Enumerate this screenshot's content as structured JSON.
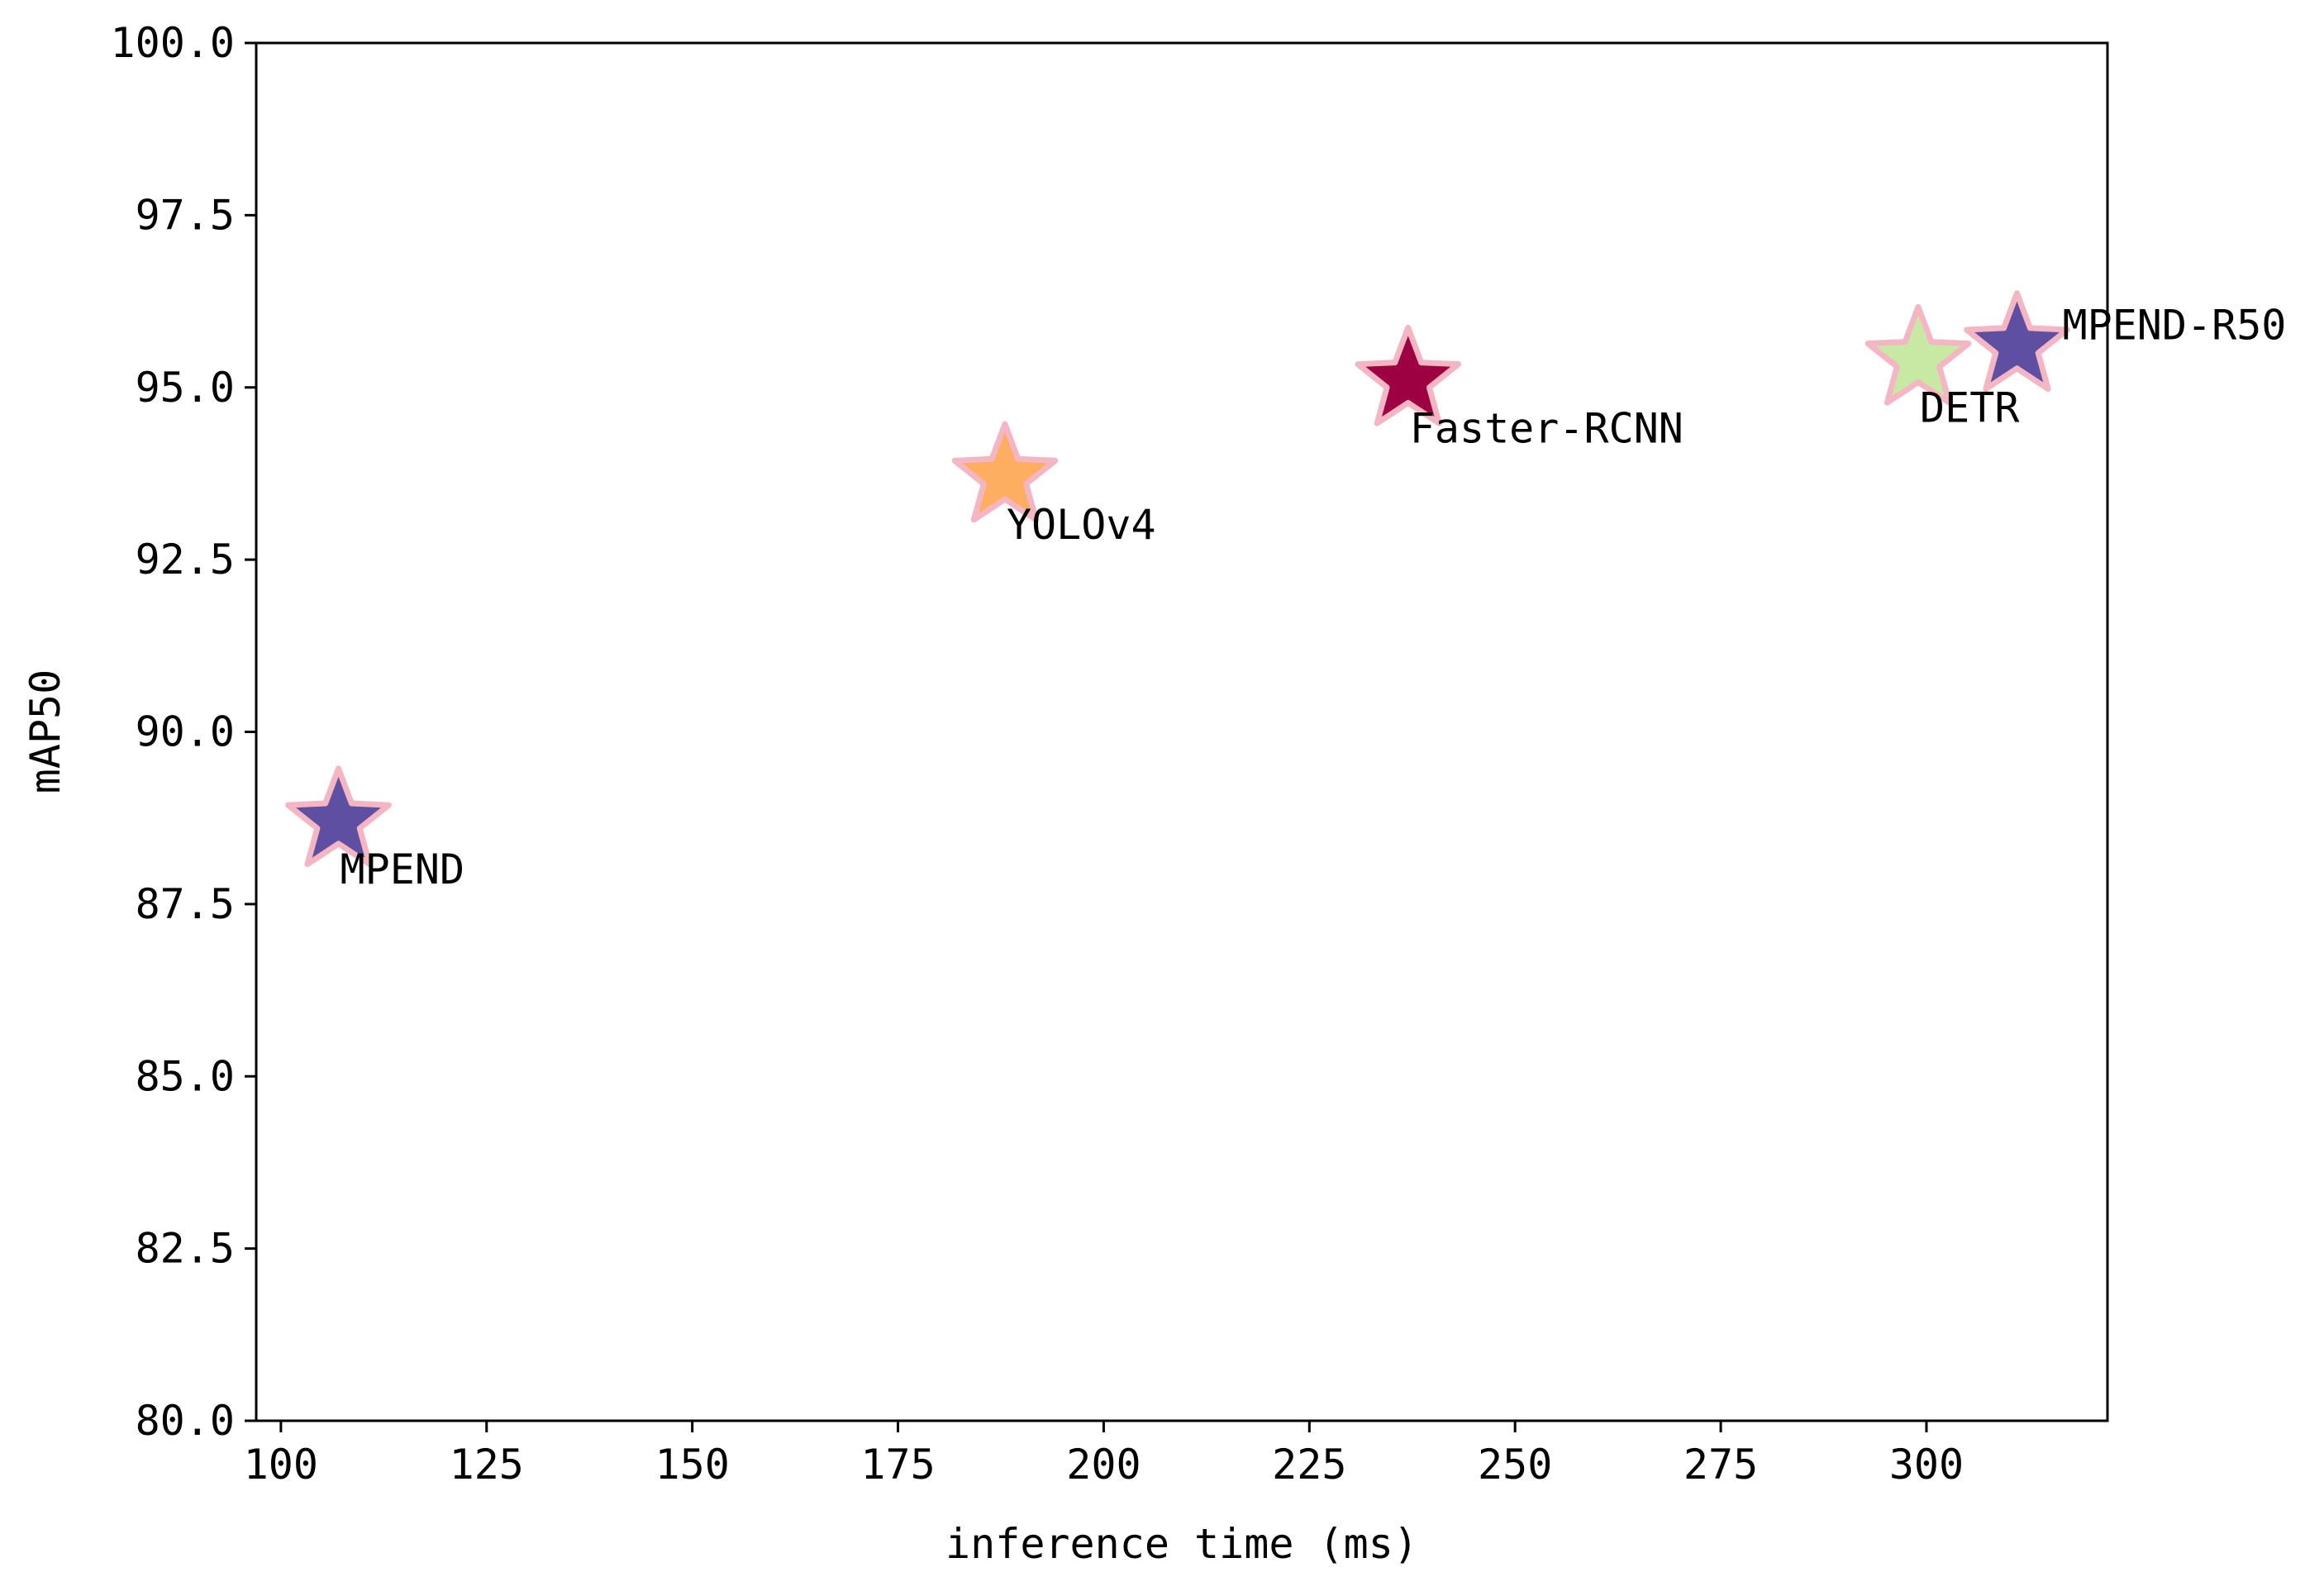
{
  "chart_data": {
    "type": "scatter",
    "title": "",
    "xlabel": "inference time (ms)",
    "ylabel": "mAP50",
    "xlim": [
      97,
      322
    ],
    "ylim": [
      80,
      100
    ],
    "xticks": [
      100,
      125,
      150,
      175,
      200,
      225,
      250,
      275,
      300
    ],
    "xtick_labels": [
      "100",
      "125",
      "150",
      "175",
      "200",
      "225",
      "250",
      "275",
      "300"
    ],
    "yticks": [
      80,
      82.5,
      85,
      87.5,
      90,
      92.5,
      95,
      97.5,
      100
    ],
    "ytick_labels": [
      "80.0",
      "82.5",
      "85.0",
      "87.5",
      "90.0",
      "92.5",
      "95.0",
      "97.5",
      "100.0"
    ],
    "grid": false,
    "legend": "none",
    "marker": "star",
    "marker_edge_color": "#f4b6c2",
    "points": [
      {
        "label": "MPEND",
        "x": 107,
        "y": 88.7,
        "color": "#5e4fa2"
      },
      {
        "label": "YOLOv4",
        "x": 188,
        "y": 93.7,
        "color": "#fdae61"
      },
      {
        "label": "Faster-RCNN",
        "x": 237,
        "y": 95.1,
        "color": "#9e0142"
      },
      {
        "label": "DETR",
        "x": 299,
        "y": 95.4,
        "color": "#c7e9a3"
      },
      {
        "label": "MPEND-R50",
        "x": 311,
        "y": 95.6,
        "color": "#5e4fa2"
      }
    ]
  }
}
